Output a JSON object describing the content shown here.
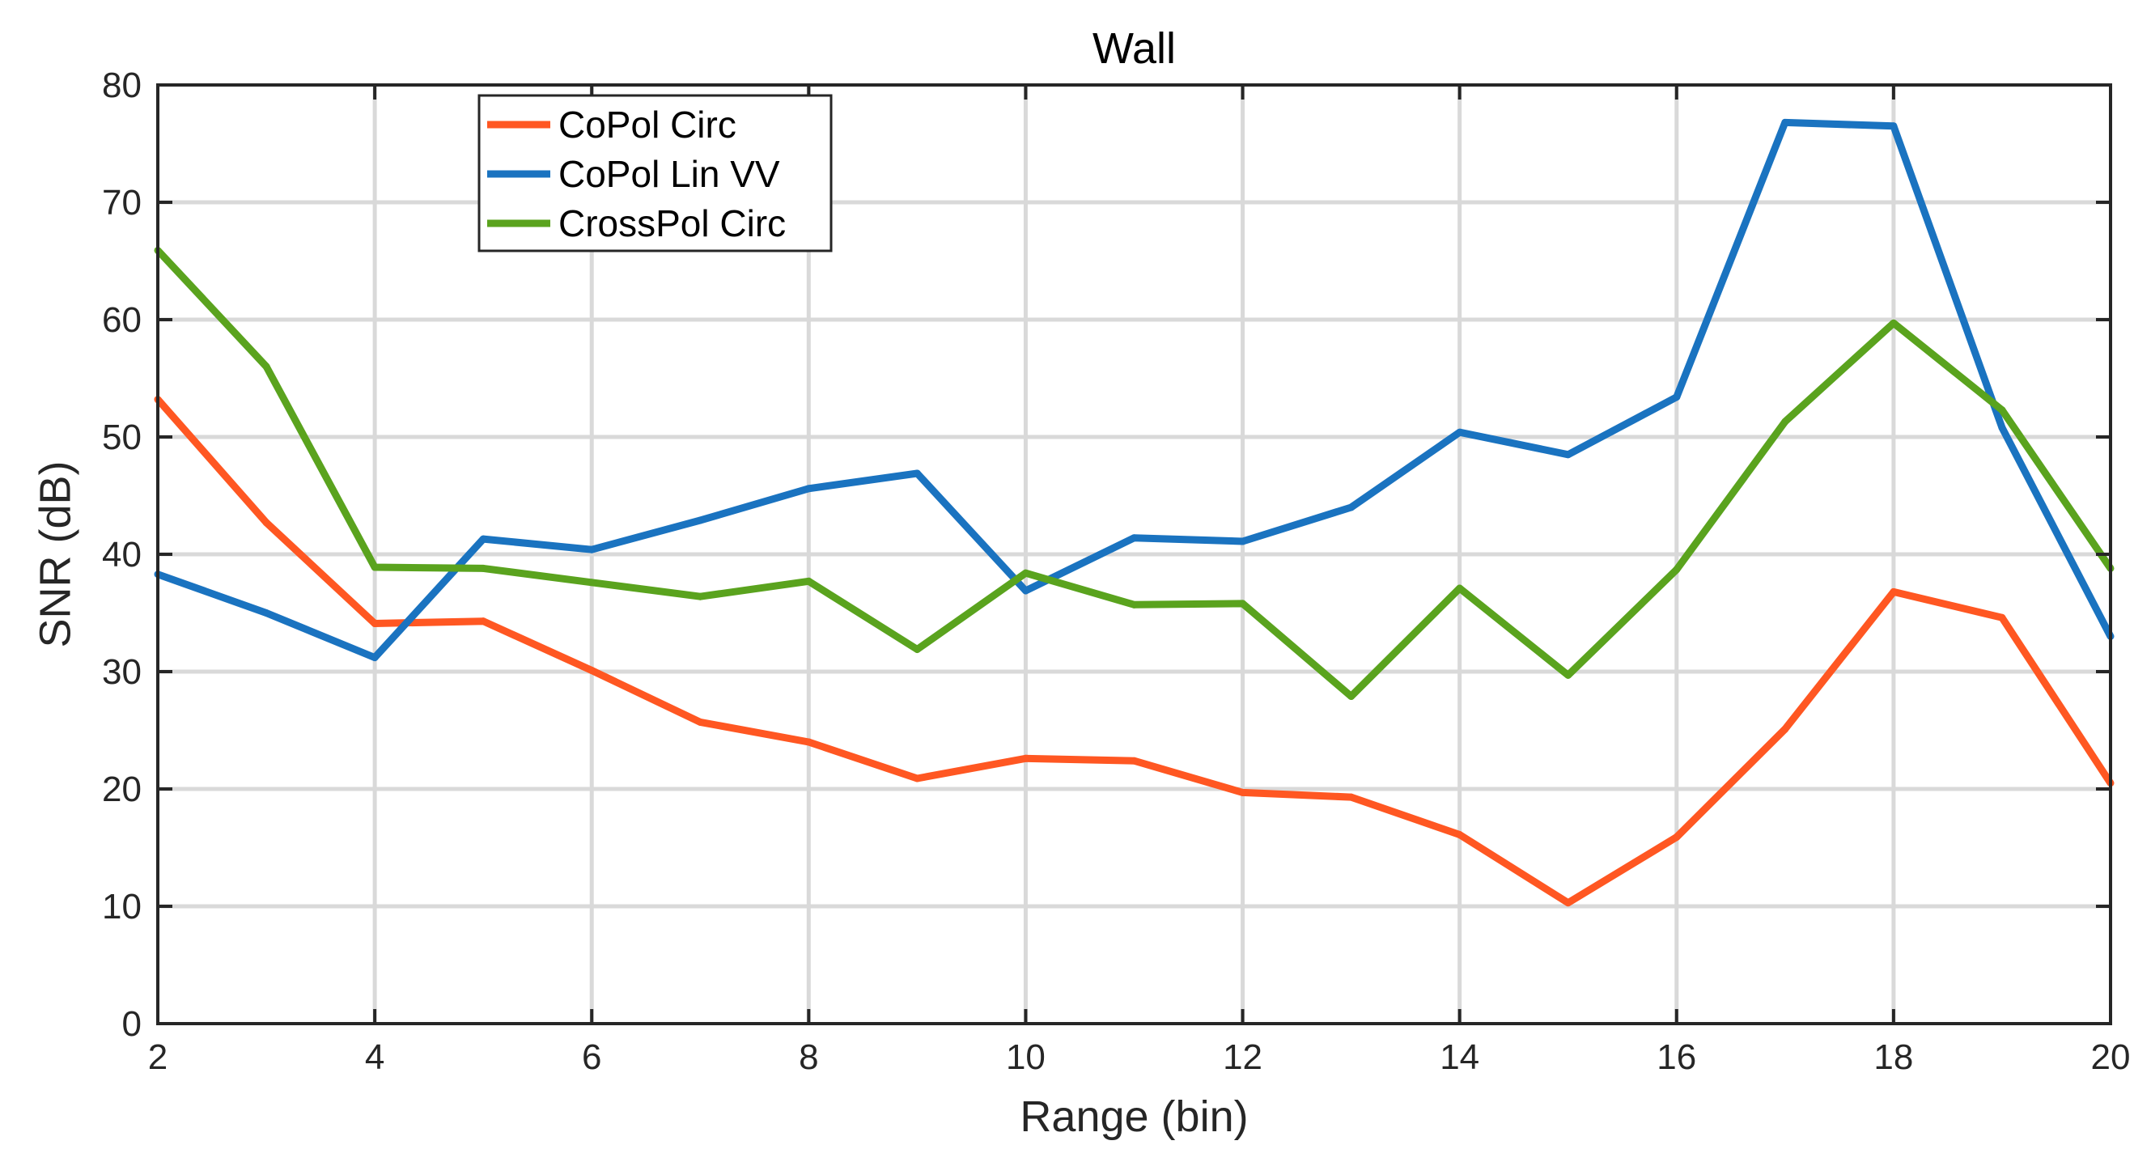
{
  "chart_data": {
    "type": "line",
    "title": "Wall",
    "xlabel": "Range (bin)",
    "ylabel": "SNR (dB)",
    "xlim": [
      2,
      20
    ],
    "ylim": [
      0,
      80
    ],
    "xticks": [
      2,
      4,
      6,
      8,
      10,
      12,
      14,
      16,
      18,
      20
    ],
    "yticks": [
      0,
      10,
      20,
      30,
      40,
      50,
      60,
      70,
      80
    ],
    "grid": true,
    "legend_position": "top-left",
    "x": [
      2,
      3,
      4,
      5,
      6,
      7,
      8,
      9,
      10,
      11,
      12,
      13,
      14,
      15,
      16,
      17,
      18,
      19,
      20
    ],
    "series": [
      {
        "name": "CoPol Circ",
        "color": "#ff5722",
        "values": [
          53.2,
          42.7,
          34.1,
          34.3,
          30.1,
          25.7,
          24.0,
          20.9,
          22.6,
          22.4,
          19.7,
          19.3,
          16.1,
          10.3,
          15.9,
          25.1,
          36.8,
          34.6,
          20.5
        ]
      },
      {
        "name": "CoPol Lin VV",
        "color": "#1a73c0",
        "values": [
          38.3,
          35.0,
          31.2,
          41.3,
          40.4,
          42.9,
          45.6,
          46.9,
          36.9,
          41.4,
          41.1,
          44.0,
          50.4,
          48.5,
          53.4,
          76.8,
          76.5,
          50.8,
          33.0
        ]
      },
      {
        "name": "CrossPol Circ",
        "color": "#5aa31e",
        "values": [
          65.9,
          56.0,
          38.9,
          38.8,
          37.6,
          36.4,
          37.7,
          31.9,
          38.4,
          35.7,
          35.8,
          27.9,
          37.1,
          29.7,
          38.7,
          51.3,
          59.7,
          52.3,
          38.8
        ]
      }
    ]
  }
}
